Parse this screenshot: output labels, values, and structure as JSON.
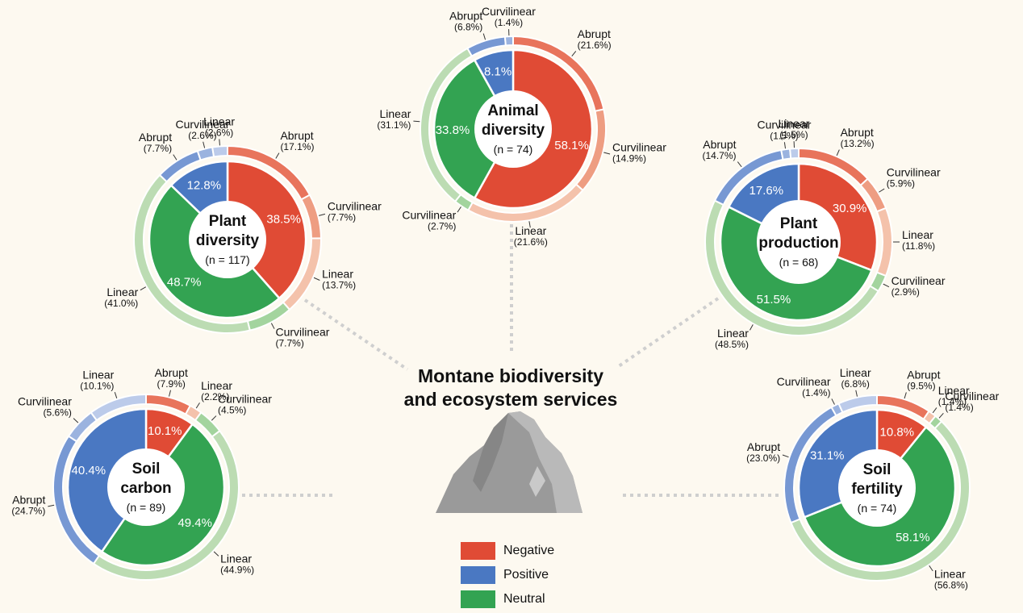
{
  "title": "Montane biodiversity\nand ecosystem services",
  "legend": [
    {
      "label": "Negative",
      "color": "#e04b35"
    },
    {
      "label": "Positive",
      "color": "#4a78c2"
    },
    {
      "label": "Neutral",
      "color": "#33a352"
    }
  ],
  "colors": {
    "Negative": {
      "inner": "#e04b35",
      "outer": [
        "#e8745c",
        "#ee9d82",
        "#f4c2ab"
      ]
    },
    "Positive": {
      "inner": "#4a78c2",
      "outer": [
        "#7798d3",
        "#9bb3df",
        "#bccbea"
      ]
    },
    "Neutral": {
      "inner": "#33a352",
      "outer": [
        "#8ccd8a",
        "#a3d49e",
        "#bcdcb3"
      ]
    }
  },
  "chart_data": [
    {
      "type": "pie",
      "title_lines": [
        "Plant",
        "diversity"
      ],
      "n_label": "(n = 117)",
      "inner": [
        {
          "effect": "Negative",
          "value": 38.5,
          "label": "38.5%"
        },
        {
          "effect": "Neutral",
          "value": 48.7,
          "label": "48.7%"
        },
        {
          "effect": "Positive",
          "value": 12.8,
          "label": "12.8%"
        }
      ],
      "outer": [
        {
          "effect": "Negative",
          "shape": "Abrupt",
          "value": 17.1,
          "pct": "(17.1%)"
        },
        {
          "effect": "Negative",
          "shape": "Curvilinear",
          "value": 7.7,
          "pct": "(7.7%)"
        },
        {
          "effect": "Negative",
          "shape": "Linear",
          "value": 13.7,
          "pct": "(13.7%)"
        },
        {
          "effect": "Neutral",
          "shape": "Curvilinear",
          "value": 7.7,
          "pct": "(7.7%)"
        },
        {
          "effect": "Neutral",
          "shape": "Linear",
          "value": 41.0,
          "pct": "(41.0%)"
        },
        {
          "effect": "Positive",
          "shape": "Abrupt",
          "value": 7.7,
          "pct": "(7.7%)"
        },
        {
          "effect": "Positive",
          "shape": "Curvilinear",
          "value": 2.6,
          "pct": "(2.6%)"
        },
        {
          "effect": "Positive",
          "shape": "Linear",
          "value": 2.6,
          "pct": "(2.6%)"
        }
      ]
    },
    {
      "type": "pie",
      "title_lines": [
        "Animal",
        "diversity"
      ],
      "n_label": "(n = 74)",
      "inner": [
        {
          "effect": "Negative",
          "value": 58.1,
          "label": "58.1%"
        },
        {
          "effect": "Neutral",
          "value": 33.8,
          "label": "33.8%"
        },
        {
          "effect": "Positive",
          "value": 8.1,
          "label": "8.1%"
        }
      ],
      "outer": [
        {
          "effect": "Negative",
          "shape": "Abrupt",
          "value": 21.6,
          "pct": "(21.6%)"
        },
        {
          "effect": "Negative",
          "shape": "Curvilinear",
          "value": 14.9,
          "pct": "(14.9%)"
        },
        {
          "effect": "Negative",
          "shape": "Linear",
          "value": 21.6,
          "pct": "(21.6%)"
        },
        {
          "effect": "Neutral",
          "shape": "Curvilinear",
          "value": 2.7,
          "pct": "(2.7%)"
        },
        {
          "effect": "Neutral",
          "shape": "Linear",
          "value": 31.1,
          "pct": "(31.1%)"
        },
        {
          "effect": "Positive",
          "shape": "Abrupt",
          "value": 6.8,
          "pct": "(6.8%)"
        },
        {
          "effect": "Positive",
          "shape": "Curvilinear",
          "value": 1.4,
          "pct": "(1.4%)"
        }
      ]
    },
    {
      "type": "pie",
      "title_lines": [
        "Plant",
        "production"
      ],
      "n_label": "(n = 68)",
      "inner": [
        {
          "effect": "Negative",
          "value": 30.9,
          "label": "30.9%"
        },
        {
          "effect": "Neutral",
          "value": 51.5,
          "label": "51.5%"
        },
        {
          "effect": "Positive",
          "value": 17.6,
          "label": "17.6%"
        }
      ],
      "outer": [
        {
          "effect": "Negative",
          "shape": "Abrupt",
          "value": 13.2,
          "pct": "(13.2%)"
        },
        {
          "effect": "Negative",
          "shape": "Curvilinear",
          "value": 5.9,
          "pct": "(5.9%)"
        },
        {
          "effect": "Negative",
          "shape": "Linear",
          "value": 11.8,
          "pct": "(11.8%)"
        },
        {
          "effect": "Neutral",
          "shape": "Curvilinear",
          "value": 2.9,
          "pct": "(2.9%)"
        },
        {
          "effect": "Neutral",
          "shape": "Linear",
          "value": 48.5,
          "pct": "(48.5%)"
        },
        {
          "effect": "Positive",
          "shape": "Abrupt",
          "value": 14.7,
          "pct": "(14.7%)"
        },
        {
          "effect": "Positive",
          "shape": "Curvilinear",
          "value": 1.5,
          "pct": "(1.5%)"
        },
        {
          "effect": "Positive",
          "shape": "Linear",
          "value": 1.5,
          "pct": "(1.5%)"
        }
      ]
    },
    {
      "type": "pie",
      "title_lines": [
        "Soil",
        "carbon"
      ],
      "n_label": "(n = 89)",
      "inner": [
        {
          "effect": "Negative",
          "value": 10.1,
          "label": "10.1%"
        },
        {
          "effect": "Neutral",
          "value": 49.4,
          "label": "49.4%"
        },
        {
          "effect": "Positive",
          "value": 40.4,
          "label": "40.4%"
        }
      ],
      "outer": [
        {
          "effect": "Negative",
          "shape": "Abrupt",
          "value": 7.9,
          "pct": "(7.9%)"
        },
        {
          "effect": "Negative",
          "shape": "Linear",
          "value": 2.2,
          "pct": "(2.2%)"
        },
        {
          "effect": "Neutral",
          "shape": "Curvilinear",
          "value": 4.5,
          "pct": "(4.5%)"
        },
        {
          "effect": "Neutral",
          "shape": "Linear",
          "value": 44.9,
          "pct": "(44.9%)"
        },
        {
          "effect": "Positive",
          "shape": "Abrupt",
          "value": 24.7,
          "pct": "(24.7%)"
        },
        {
          "effect": "Positive",
          "shape": "Curvilinear",
          "value": 5.6,
          "pct": "(5.6%)"
        },
        {
          "effect": "Positive",
          "shape": "Linear",
          "value": 10.1,
          "pct": "(10.1%)"
        }
      ]
    },
    {
      "type": "pie",
      "title_lines": [
        "Soil",
        "fertility"
      ],
      "n_label": "(n = 74)",
      "inner": [
        {
          "effect": "Negative",
          "value": 10.8,
          "label": "10.8%"
        },
        {
          "effect": "Neutral",
          "value": 58.1,
          "label": "58.1%"
        },
        {
          "effect": "Positive",
          "value": 31.1,
          "label": "31.1%"
        }
      ],
      "outer": [
        {
          "effect": "Negative",
          "shape": "Abrupt",
          "value": 9.5,
          "pct": "(9.5%)"
        },
        {
          "effect": "Negative",
          "shape": "Linear",
          "value": 1.4,
          "pct": "(1.4%)"
        },
        {
          "effect": "Neutral",
          "shape": "Curvilinear",
          "value": 1.4,
          "pct": "(1.4%)"
        },
        {
          "effect": "Neutral",
          "shape": "Linear",
          "value": 56.8,
          "pct": "(56.8%)"
        },
        {
          "effect": "Positive",
          "shape": "Abrupt",
          "value": 23.0,
          "pct": "(23.0%)"
        },
        {
          "effect": "Positive",
          "shape": "Curvilinear",
          "value": 1.4,
          "pct": "(1.4%)"
        },
        {
          "effect": "Positive",
          "shape": "Linear",
          "value": 6.8,
          "pct": "(6.8%)"
        }
      ]
    }
  ]
}
